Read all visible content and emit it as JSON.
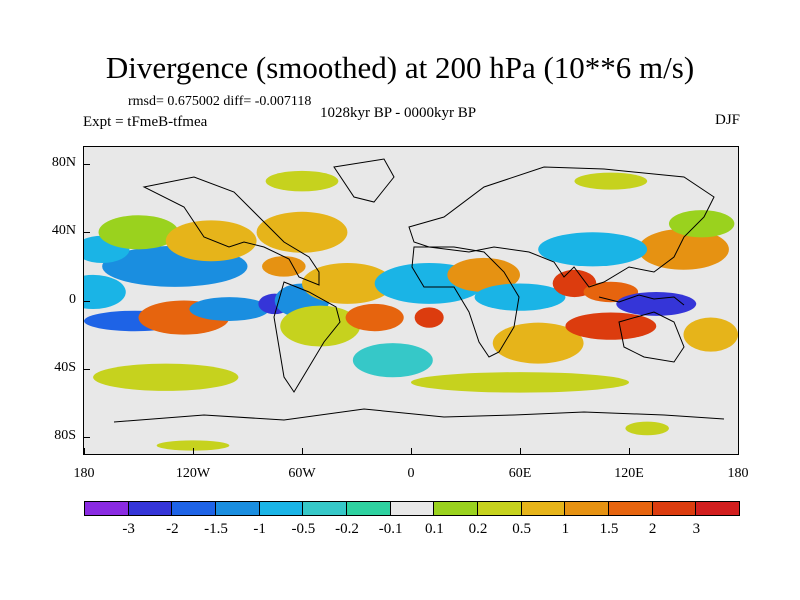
{
  "chart_data": {
    "type": "heatmap",
    "title": "Divergence (smoothed) at 200 hPa (10**6 m/s)",
    "stats": "rmsd= 0.675002 diff= -0.007118",
    "experiment": "Expt = tFmeB-tfmea",
    "period": "1028kyr BP - 0000kyr BP",
    "season": "DJF",
    "xlabel": "",
    "ylabel": "",
    "xlim": [
      -180,
      180
    ],
    "ylim": [
      -90,
      90
    ],
    "x_ticks": [
      {
        "value": -180,
        "label": "180"
      },
      {
        "value": -120,
        "label": "120W"
      },
      {
        "value": -60,
        "label": "60W"
      },
      {
        "value": 0,
        "label": "0"
      },
      {
        "value": 60,
        "label": "60E"
      },
      {
        "value": 120,
        "label": "120E"
      },
      {
        "value": 180,
        "label": "180"
      }
    ],
    "y_ticks": [
      {
        "value": 80,
        "label": "80N"
      },
      {
        "value": 40,
        "label": "40N"
      },
      {
        "value": 0,
        "label": "0"
      },
      {
        "value": -40,
        "label": "40S"
      },
      {
        "value": -80,
        "label": "80S"
      }
    ],
    "colorbar": {
      "colors": [
        "#8a2be2",
        "#3535d8",
        "#1e63e6",
        "#1a8ee0",
        "#1ab4e6",
        "#36c8c8",
        "#2ed2a0",
        "#e8e8e8",
        "#9ad21e",
        "#c6d21e",
        "#e6b41a",
        "#e69212",
        "#e6640e",
        "#dc3c0e",
        "#d21e1e"
      ],
      "labels": [
        "-3",
        "-2",
        "-1.5",
        "-1",
        "-0.5",
        "-0.2",
        "-0.1",
        "0.1",
        "0.2",
        "0.5",
        "1",
        "1.5",
        "2",
        "3"
      ]
    },
    "regions": [
      {
        "lon": -175,
        "lat": 5,
        "rx": 18,
        "ry": 10,
        "level": 4
      },
      {
        "lon": -152,
        "lat": -12,
        "rx": 28,
        "ry": 6,
        "level": 2
      },
      {
        "lon": -130,
        "lat": 20,
        "rx": 40,
        "ry": 12,
        "level": 3
      },
      {
        "lon": -170,
        "lat": 30,
        "rx": 15,
        "ry": 8,
        "level": 4
      },
      {
        "lon": -150,
        "lat": 40,
        "rx": 22,
        "ry": 10,
        "level": 8
      },
      {
        "lon": -125,
        "lat": -10,
        "rx": 25,
        "ry": 10,
        "level": 12
      },
      {
        "lon": -100,
        "lat": -5,
        "rx": 22,
        "ry": 7,
        "level": 3
      },
      {
        "lon": -70,
        "lat": 20,
        "rx": 12,
        "ry": 6,
        "level": 11
      },
      {
        "lon": -110,
        "lat": 35,
        "rx": 25,
        "ry": 12,
        "level": 10
      },
      {
        "lon": -60,
        "lat": 40,
        "rx": 25,
        "ry": 12,
        "level": 10
      },
      {
        "lon": -75,
        "lat": -2,
        "rx": 9,
        "ry": 6,
        "level": 1
      },
      {
        "lon": -60,
        "lat": 0,
        "rx": 15,
        "ry": 10,
        "level": 3
      },
      {
        "lon": -50,
        "lat": -15,
        "rx": 22,
        "ry": 12,
        "level": 9
      },
      {
        "lon": -35,
        "lat": 10,
        "rx": 25,
        "ry": 12,
        "level": 10
      },
      {
        "lon": -20,
        "lat": -10,
        "rx": 16,
        "ry": 8,
        "level": 12
      },
      {
        "lon": 10,
        "lat": -10,
        "rx": 8,
        "ry": 6,
        "level": 13
      },
      {
        "lon": 10,
        "lat": 10,
        "rx": 30,
        "ry": 12,
        "level": 4
      },
      {
        "lon": -10,
        "lat": -35,
        "rx": 22,
        "ry": 10,
        "level": 5
      },
      {
        "lon": 40,
        "lat": 15,
        "rx": 20,
        "ry": 10,
        "level": 11
      },
      {
        "lon": 60,
        "lat": 2,
        "rx": 25,
        "ry": 8,
        "level": 4
      },
      {
        "lon": 70,
        "lat": -25,
        "rx": 25,
        "ry": 12,
        "level": 10
      },
      {
        "lon": 90,
        "lat": 10,
        "rx": 12,
        "ry": 8,
        "level": 13
      },
      {
        "lon": 110,
        "lat": 5,
        "rx": 15,
        "ry": 6,
        "level": 12
      },
      {
        "lon": 110,
        "lat": -15,
        "rx": 25,
        "ry": 8,
        "level": 13
      },
      {
        "lon": 135,
        "lat": -2,
        "rx": 22,
        "ry": 7,
        "level": 1
      },
      {
        "lon": 150,
        "lat": 30,
        "rx": 25,
        "ry": 12,
        "level": 11
      },
      {
        "lon": 100,
        "lat": 30,
        "rx": 30,
        "ry": 10,
        "level": 4
      },
      {
        "lon": 165,
        "lat": -20,
        "rx": 15,
        "ry": 10,
        "level": 10
      },
      {
        "lon": 160,
        "lat": 45,
        "rx": 18,
        "ry": 8,
        "level": 8
      },
      {
        "lon": -60,
        "lat": 70,
        "rx": 20,
        "ry": 6,
        "level": 9
      },
      {
        "lon": 110,
        "lat": 70,
        "rx": 20,
        "ry": 5,
        "level": 9
      },
      {
        "lon": -135,
        "lat": -45,
        "rx": 40,
        "ry": 8,
        "level": 9
      },
      {
        "lon": 60,
        "lat": -48,
        "rx": 60,
        "ry": 6,
        "level": 9
      },
      {
        "lon": 130,
        "lat": -75,
        "rx": 12,
        "ry": 4,
        "level": 9
      },
      {
        "lon": -120,
        "lat": -85,
        "rx": 20,
        "ry": 3,
        "level": 9
      }
    ]
  }
}
